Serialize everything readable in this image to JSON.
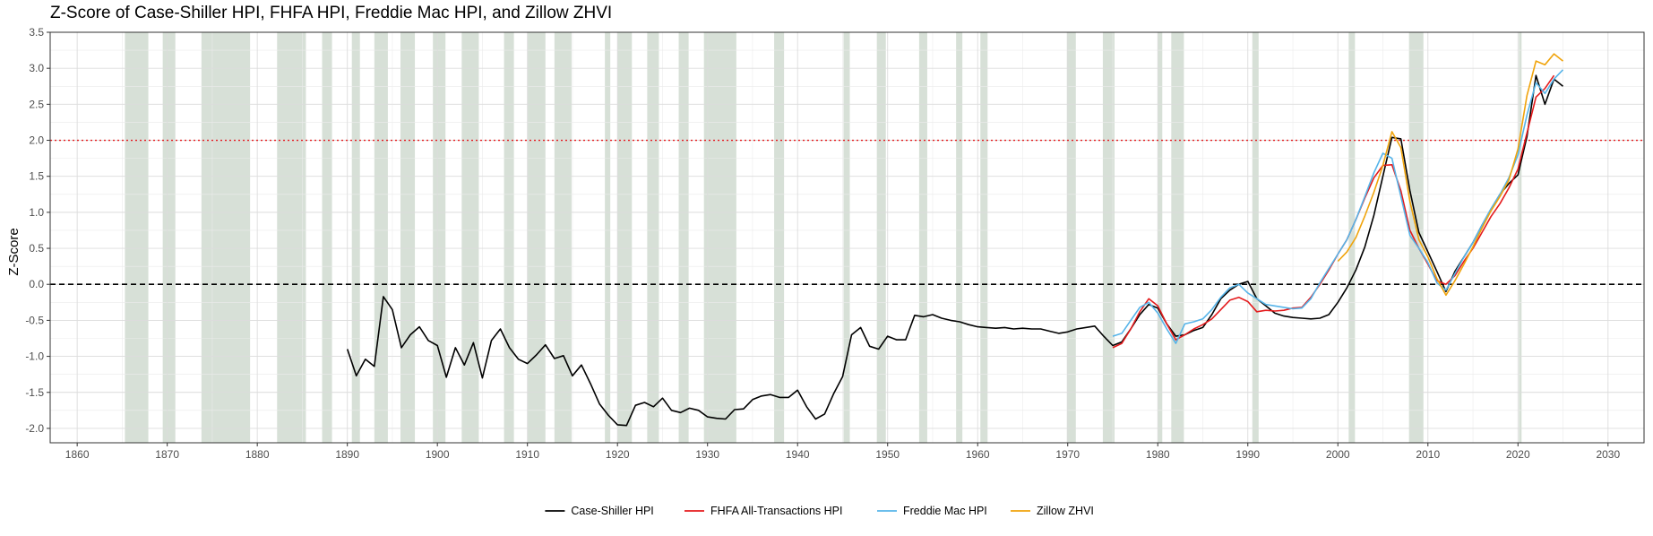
{
  "chart_data": {
    "type": "line",
    "title": "Z-Score of Case-Shiller HPI, FHFA HPI, Freddie Mac HPI, and Zillow ZHVI",
    "ylabel": "Z-Score",
    "xlabel": "",
    "xlim": [
      1857,
      2034
    ],
    "ylim": [
      -2.2,
      3.5
    ],
    "xticks": [
      1860,
      1870,
      1880,
      1890,
      1900,
      1910,
      1920,
      1930,
      1940,
      1950,
      1960,
      1970,
      1980,
      1990,
      2000,
      2010,
      2020,
      2030
    ],
    "yticks": [
      -2.0,
      -1.5,
      -1.0,
      -0.5,
      0.0,
      0.5,
      1.0,
      1.5,
      2.0,
      2.5,
      3.0,
      3.5
    ],
    "ytick_labels": [
      "-2.0",
      "-1.5",
      "-1.0",
      "-0.5",
      "0.0",
      "0.5",
      "1.0",
      "1.5",
      "2.0",
      "2.5",
      "3.0",
      "3.5"
    ],
    "grid": true,
    "legend_position": "bottom",
    "reference_lines": [
      {
        "y": 0.0,
        "style": "dashed",
        "color": "#000000"
      },
      {
        "y": 2.0,
        "style": "dotted",
        "color": "#e41a1c"
      }
    ],
    "recession_color": "#c9d6c9",
    "recessions": [
      [
        1865.3,
        1867.9
      ],
      [
        1869.5,
        1870.9
      ],
      [
        1873.8,
        1879.2
      ],
      [
        1882.2,
        1885.4
      ],
      [
        1887.2,
        1888.3
      ],
      [
        1890.5,
        1891.4
      ],
      [
        1893.0,
        1894.5
      ],
      [
        1895.9,
        1897.5
      ],
      [
        1899.5,
        1900.9
      ],
      [
        1902.7,
        1904.6
      ],
      [
        1907.4,
        1908.5
      ],
      [
        1910.0,
        1912.0
      ],
      [
        1913.0,
        1914.9
      ],
      [
        1918.6,
        1919.2
      ],
      [
        1920.0,
        1921.6
      ],
      [
        1923.3,
        1924.6
      ],
      [
        1926.8,
        1927.9
      ],
      [
        1929.6,
        1933.2
      ],
      [
        1937.4,
        1938.5
      ],
      [
        1945.1,
        1945.8
      ],
      [
        1948.8,
        1949.8
      ],
      [
        1953.5,
        1954.4
      ],
      [
        1957.6,
        1958.3
      ],
      [
        1960.3,
        1961.1
      ],
      [
        1969.9,
        1970.9
      ],
      [
        1973.9,
        1975.2
      ],
      [
        1980.0,
        1980.5
      ],
      [
        1981.5,
        1982.9
      ],
      [
        1990.5,
        1991.2
      ],
      [
        2001.2,
        2001.9
      ],
      [
        2007.9,
        2009.5
      ],
      [
        2020.1,
        2020.4
      ]
    ],
    "series": [
      {
        "name": "Case-Shiller HPI",
        "color": "#000000",
        "x": [
          1890,
          1891,
          1892,
          1893,
          1894,
          1895,
          1896,
          1897,
          1898,
          1899,
          1900,
          1901,
          1902,
          1903,
          1904,
          1905,
          1906,
          1907,
          1908,
          1909,
          1910,
          1911,
          1912,
          1913,
          1914,
          1915,
          1916,
          1917,
          1918,
          1919,
          1920,
          1921,
          1922,
          1923,
          1924,
          1925,
          1926,
          1927,
          1928,
          1929,
          1930,
          1931,
          1932,
          1933,
          1934,
          1935,
          1936,
          1937,
          1938,
          1939,
          1940,
          1941,
          1942,
          1943,
          1944,
          1945,
          1946,
          1947,
          1948,
          1949,
          1950,
          1951,
          1952,
          1953,
          1954,
          1955,
          1956,
          1957,
          1958,
          1959,
          1960,
          1961,
          1962,
          1963,
          1964,
          1965,
          1966,
          1967,
          1968,
          1969,
          1970,
          1971,
          1972,
          1973,
          1974,
          1975,
          1976,
          1977,
          1978,
          1979,
          1980,
          1981,
          1982,
          1983,
          1984,
          1985,
          1986,
          1987,
          1988,
          1989,
          1990,
          1991,
          1992,
          1993,
          1994,
          1995,
          1996,
          1997,
          1998,
          1999,
          2000,
          2001,
          2002,
          2003,
          2004,
          2005,
          2006,
          2007,
          2008,
          2009,
          2010,
          2011,
          2012,
          2013,
          2014,
          2015,
          2016,
          2017,
          2018,
          2019,
          2020,
          2021,
          2022,
          2023,
          2024,
          2025
        ],
        "y": [
          -0.9,
          -1.27,
          -1.04,
          -1.14,
          -0.17,
          -0.35,
          -0.88,
          -0.7,
          -0.59,
          -0.78,
          -0.85,
          -1.29,
          -0.88,
          -1.12,
          -0.81,
          -1.3,
          -0.78,
          -0.62,
          -0.88,
          -1.04,
          -1.1,
          -0.98,
          -0.84,
          -1.03,
          -0.99,
          -1.27,
          -1.12,
          -1.38,
          -1.66,
          -1.82,
          -1.95,
          -1.96,
          -1.68,
          -1.64,
          -1.7,
          -1.58,
          -1.75,
          -1.78,
          -1.72,
          -1.75,
          -1.84,
          -1.86,
          -1.87,
          -1.74,
          -1.73,
          -1.6,
          -1.55,
          -1.53,
          -1.57,
          -1.57,
          -1.47,
          -1.7,
          -1.87,
          -1.8,
          -1.52,
          -1.28,
          -0.7,
          -0.6,
          -0.86,
          -0.9,
          -0.72,
          -0.77,
          -0.77,
          -0.43,
          -0.45,
          -0.42,
          -0.47,
          -0.5,
          -0.52,
          -0.56,
          -0.59,
          -0.6,
          -0.61,
          -0.6,
          -0.62,
          -0.61,
          -0.62,
          -0.62,
          -0.65,
          -0.68,
          -0.66,
          -0.62,
          -0.6,
          -0.58,
          -0.72,
          -0.85,
          -0.8,
          -0.62,
          -0.42,
          -0.28,
          -0.33,
          -0.55,
          -0.72,
          -0.7,
          -0.64,
          -0.6,
          -0.42,
          -0.2,
          -0.08,
          0.0,
          0.04,
          -0.2,
          -0.3,
          -0.4,
          -0.44,
          -0.46,
          -0.47,
          -0.48,
          -0.47,
          -0.42,
          -0.25,
          -0.05,
          0.2,
          0.52,
          0.96,
          1.5,
          2.04,
          2.02,
          1.3,
          0.72,
          0.45,
          0.18,
          -0.1,
          0.18,
          0.38,
          0.58,
          0.82,
          1.04,
          1.25,
          1.4,
          1.52,
          2.05,
          2.9,
          2.5,
          2.85,
          2.75
        ]
      },
      {
        "name": "FHFA All-Transactions HPI",
        "color": "#e41a1c",
        "x": [
          1975,
          1976,
          1977,
          1978,
          1979,
          1980,
          1981,
          1982,
          1983,
          1984,
          1985,
          1986,
          1987,
          1988,
          1989,
          1990,
          1991,
          1992,
          1993,
          1994,
          1995,
          1996,
          1997,
          1998,
          1999,
          2000,
          2001,
          2002,
          2003,
          2004,
          2005,
          2006,
          2007,
          2008,
          2009,
          2010,
          2011,
          2012,
          2013,
          2014,
          2015,
          2016,
          2017,
          2018,
          2019,
          2020,
          2021,
          2022,
          2023,
          2024
        ],
        "y": [
          -0.88,
          -0.82,
          -0.62,
          -0.38,
          -0.2,
          -0.3,
          -0.55,
          -0.77,
          -0.7,
          -0.62,
          -0.56,
          -0.48,
          -0.35,
          -0.22,
          -0.18,
          -0.24,
          -0.38,
          -0.36,
          -0.37,
          -0.36,
          -0.33,
          -0.32,
          -0.18,
          0.0,
          0.2,
          0.42,
          0.62,
          0.9,
          1.2,
          1.48,
          1.65,
          1.66,
          1.3,
          0.75,
          0.5,
          0.28,
          0.05,
          0.0,
          0.12,
          0.32,
          0.5,
          0.72,
          0.94,
          1.12,
          1.34,
          1.6,
          2.1,
          2.6,
          2.72,
          2.9
        ]
      },
      {
        "name": "Freddie Mac HPI",
        "color": "#56b4e9",
        "x": [
          1975,
          1976,
          1977,
          1978,
          1979,
          1980,
          1981,
          1982,
          1983,
          1984,
          1985,
          1986,
          1987,
          1988,
          1989,
          1990,
          1991,
          1992,
          1993,
          1994,
          1995,
          1996,
          1997,
          1998,
          1999,
          2000,
          2001,
          2002,
          2003,
          2004,
          2005,
          2006,
          2007,
          2008,
          2009,
          2010,
          2011,
          2012,
          2013,
          2014,
          2015,
          2016,
          2017,
          2018,
          2019,
          2020,
          2021,
          2022,
          2023,
          2024,
          2025
        ],
        "y": [
          -0.72,
          -0.68,
          -0.5,
          -0.32,
          -0.25,
          -0.4,
          -0.62,
          -0.82,
          -0.55,
          -0.52,
          -0.48,
          -0.35,
          -0.18,
          -0.05,
          0.0,
          -0.12,
          -0.2,
          -0.28,
          -0.3,
          -0.32,
          -0.34,
          -0.33,
          -0.2,
          0.02,
          0.22,
          0.42,
          0.62,
          0.9,
          1.22,
          1.55,
          1.82,
          1.75,
          1.22,
          0.68,
          0.5,
          0.3,
          0.02,
          -0.08,
          0.15,
          0.38,
          0.58,
          0.82,
          1.05,
          1.25,
          1.48,
          1.8,
          2.35,
          2.8,
          2.65,
          2.85,
          2.98
        ]
      },
      {
        "name": "Zillow ZHVI",
        "color": "#f0a30a",
        "x": [
          2000,
          2001,
          2002,
          2003,
          2004,
          2005,
          2006,
          2007,
          2008,
          2009,
          2010,
          2011,
          2012,
          2013,
          2014,
          2015,
          2016,
          2017,
          2018,
          2019,
          2020,
          2021,
          2022,
          2023,
          2024,
          2025
        ],
        "y": [
          0.32,
          0.45,
          0.65,
          0.95,
          1.28,
          1.65,
          2.12,
          1.9,
          1.15,
          0.62,
          0.38,
          0.08,
          -0.15,
          0.05,
          0.28,
          0.52,
          0.78,
          1.02,
          1.22,
          1.45,
          1.88,
          2.62,
          3.1,
          3.05,
          3.2,
          3.1
        ]
      }
    ]
  }
}
